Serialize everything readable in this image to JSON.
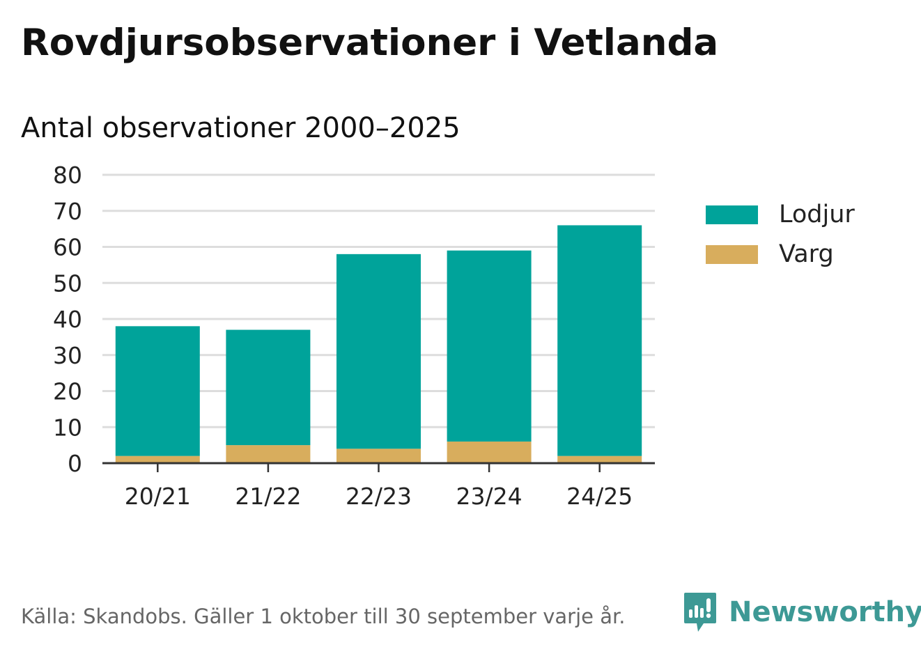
{
  "colors": {
    "lodjur": "#00a39a",
    "varg": "#d8ad5d",
    "grid": "#dddddd",
    "axis": "#333333",
    "brand": "#3d9995"
  },
  "chart_data": {
    "type": "bar",
    "stacked": true,
    "title": "Rovdjursobservationer i Vetlanda",
    "subtitle": "Antal observationer 2000–2025",
    "categories": [
      "20/21",
      "21/22",
      "22/23",
      "23/24",
      "24/25"
    ],
    "series": [
      {
        "name": "Varg",
        "values": [
          2,
          5,
          4,
          6,
          2
        ]
      },
      {
        "name": "Lodjur",
        "values": [
          36,
          32,
          54,
          53,
          64
        ]
      }
    ],
    "ylim": [
      0,
      80
    ],
    "yticks": [
      0,
      10,
      20,
      30,
      40,
      50,
      60,
      70,
      80
    ],
    "grid": true,
    "legend": [
      {
        "name": "Lodjur",
        "color_key": "lodjur"
      },
      {
        "name": "Varg",
        "color_key": "varg"
      }
    ],
    "legend_position": "right",
    "xlabel": "",
    "ylabel": ""
  },
  "footer": {
    "source": "Källa: Skandobs. Gäller 1 oktober till 30 september varje år.",
    "brand": "Newsworthy",
    "brand_icon": "newsworthy-logo-icon"
  }
}
